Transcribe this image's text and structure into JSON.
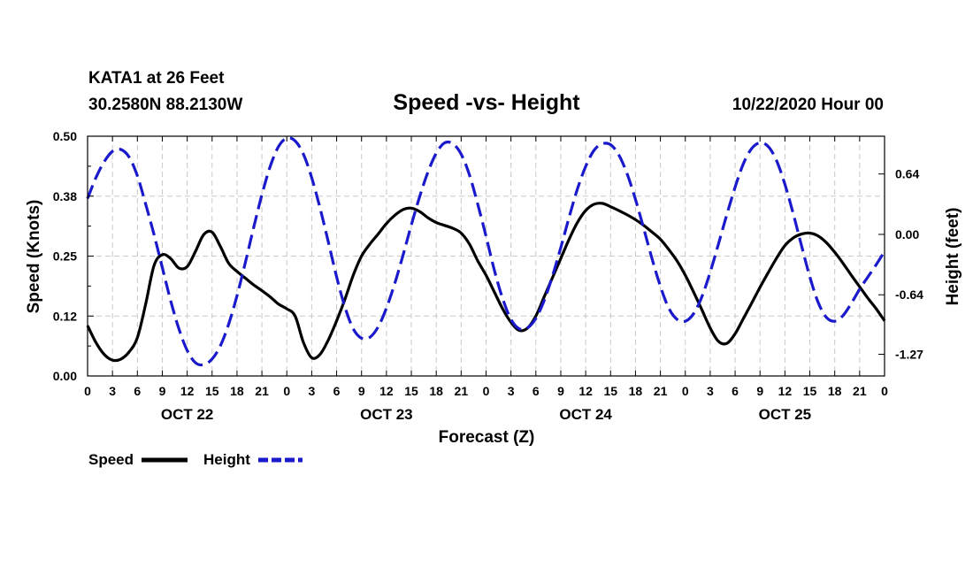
{
  "header": {
    "station": "KATA1 at 26 Feet",
    "coords": "30.2580N 88.2130W",
    "title": "Speed -vs- Height",
    "run": "10/22/2020 Hour 00"
  },
  "legend": {
    "speed_label": "Speed",
    "height_label": "Height"
  },
  "colors": {
    "speed": "#000000",
    "height": "#1a1acc",
    "grid": "#c8c8c8"
  },
  "chart_data": {
    "type": "line",
    "title": "Speed -vs- Height",
    "xlabel": "Forecast (Z)",
    "ylabel_left": "Speed (Knots)",
    "ylabel_right": "Height (feet)",
    "x_range_hours": [
      0,
      96
    ],
    "y_left_range": [
      0,
      0.5
    ],
    "y_right_range": [
      -1.5,
      1.04
    ],
    "y_left_ticks": [
      "0.00",
      "0.12",
      "0.25",
      "0.38",
      "0.50"
    ],
    "y_left_tick_values": [
      0.0,
      0.125,
      0.25,
      0.375,
      0.5
    ],
    "y_right_ticks": [
      "0.64",
      "0.00",
      "-0.64",
      "-1.27"
    ],
    "y_right_tick_values": [
      0.64,
      0.0,
      -0.64,
      -1.27
    ],
    "x_ticks": [
      {
        "hour": 0,
        "label": "0"
      },
      {
        "hour": 3,
        "label": "3"
      },
      {
        "hour": 6,
        "label": "6"
      },
      {
        "hour": 9,
        "label": "9"
      },
      {
        "hour": 12,
        "label": "12"
      },
      {
        "hour": 15,
        "label": "15"
      },
      {
        "hour": 18,
        "label": "18"
      },
      {
        "hour": 21,
        "label": "21"
      },
      {
        "hour": 24,
        "label": "0"
      },
      {
        "hour": 27,
        "label": "3"
      },
      {
        "hour": 30,
        "label": "6"
      },
      {
        "hour": 33,
        "label": "9"
      },
      {
        "hour": 36,
        "label": "12"
      },
      {
        "hour": 39,
        "label": "15"
      },
      {
        "hour": 42,
        "label": "18"
      },
      {
        "hour": 45,
        "label": "21"
      },
      {
        "hour": 48,
        "label": "0"
      },
      {
        "hour": 51,
        "label": "3"
      },
      {
        "hour": 54,
        "label": "6"
      },
      {
        "hour": 57,
        "label": "9"
      },
      {
        "hour": 60,
        "label": "12"
      },
      {
        "hour": 63,
        "label": "15"
      },
      {
        "hour": 66,
        "label": "18"
      },
      {
        "hour": 69,
        "label": "21"
      },
      {
        "hour": 72,
        "label": "0"
      },
      {
        "hour": 75,
        "label": "3"
      },
      {
        "hour": 78,
        "label": "6"
      },
      {
        "hour": 81,
        "label": "9"
      },
      {
        "hour": 84,
        "label": "12"
      },
      {
        "hour": 87,
        "label": "15"
      },
      {
        "hour": 90,
        "label": "18"
      },
      {
        "hour": 93,
        "label": "21"
      },
      {
        "hour": 96,
        "label": "0"
      }
    ],
    "date_labels": [
      {
        "hour": 12,
        "label": "OCT 22"
      },
      {
        "hour": 36,
        "label": "OCT 23"
      },
      {
        "hour": 60,
        "label": "OCT 24"
      },
      {
        "hour": 84,
        "label": "OCT 25"
      }
    ],
    "series": [
      {
        "name": "Speed",
        "axis": "left",
        "style": "solid",
        "points": [
          [
            0,
            0.105
          ],
          [
            1,
            0.07
          ],
          [
            2,
            0.045
          ],
          [
            3,
            0.033
          ],
          [
            4,
            0.035
          ],
          [
            5,
            0.05
          ],
          [
            6,
            0.08
          ],
          [
            7,
            0.15
          ],
          [
            8,
            0.23
          ],
          [
            9,
            0.253
          ],
          [
            10,
            0.245
          ],
          [
            11,
            0.225
          ],
          [
            12,
            0.228
          ],
          [
            13,
            0.26
          ],
          [
            14,
            0.295
          ],
          [
            15,
            0.3
          ],
          [
            16,
            0.27
          ],
          [
            17,
            0.235
          ],
          [
            18,
            0.218
          ],
          [
            19,
            0.204
          ],
          [
            20,
            0.19
          ],
          [
            21,
            0.178
          ],
          [
            22,
            0.165
          ],
          [
            23,
            0.15
          ],
          [
            24,
            0.14
          ],
          [
            25,
            0.125
          ],
          [
            26,
            0.07
          ],
          [
            27,
            0.038
          ],
          [
            28,
            0.045
          ],
          [
            29,
            0.075
          ],
          [
            30,
            0.115
          ],
          [
            31,
            0.16
          ],
          [
            32,
            0.21
          ],
          [
            33,
            0.25
          ],
          [
            34,
            0.275
          ],
          [
            35,
            0.296
          ],
          [
            36,
            0.318
          ],
          [
            37,
            0.335
          ],
          [
            38,
            0.347
          ],
          [
            39,
            0.35
          ],
          [
            40,
            0.343
          ],
          [
            41,
            0.33
          ],
          [
            42,
            0.32
          ],
          [
            43,
            0.314
          ],
          [
            44,
            0.308
          ],
          [
            45,
            0.298
          ],
          [
            46,
            0.275
          ],
          [
            47,
            0.24
          ],
          [
            48,
            0.21
          ],
          [
            49,
            0.175
          ],
          [
            50,
            0.14
          ],
          [
            51,
            0.112
          ],
          [
            52,
            0.095
          ],
          [
            53,
            0.1
          ],
          [
            54,
            0.125
          ],
          [
            55,
            0.165
          ],
          [
            56,
            0.205
          ],
          [
            57,
            0.245
          ],
          [
            58,
            0.285
          ],
          [
            59,
            0.32
          ],
          [
            60,
            0.345
          ],
          [
            61,
            0.358
          ],
          [
            62,
            0.36
          ],
          [
            63,
            0.353
          ],
          [
            64,
            0.345
          ],
          [
            65,
            0.336
          ],
          [
            66,
            0.326
          ],
          [
            67,
            0.314
          ],
          [
            68,
            0.3
          ],
          [
            69,
            0.285
          ],
          [
            70,
            0.264
          ],
          [
            71,
            0.24
          ],
          [
            72,
            0.21
          ],
          [
            73,
            0.175
          ],
          [
            74,
            0.138
          ],
          [
            75,
            0.1
          ],
          [
            76,
            0.072
          ],
          [
            77,
            0.068
          ],
          [
            78,
            0.088
          ],
          [
            79,
            0.12
          ],
          [
            80,
            0.152
          ],
          [
            81,
            0.185
          ],
          [
            82,
            0.216
          ],
          [
            83,
            0.246
          ],
          [
            84,
            0.272
          ],
          [
            85,
            0.288
          ],
          [
            86,
            0.296
          ],
          [
            87,
            0.298
          ],
          [
            88,
            0.292
          ],
          [
            89,
            0.278
          ],
          [
            90,
            0.258
          ],
          [
            91,
            0.235
          ],
          [
            92,
            0.21
          ],
          [
            93,
            0.186
          ],
          [
            94,
            0.162
          ],
          [
            95,
            0.14
          ],
          [
            96,
            0.115
          ]
        ]
      },
      {
        "name": "Height",
        "axis": "right",
        "style": "dashed",
        "points": [
          [
            0,
            0.38
          ],
          [
            1,
            0.6
          ],
          [
            2,
            0.77
          ],
          [
            3,
            0.88
          ],
          [
            4,
            0.9
          ],
          [
            5,
            0.82
          ],
          [
            6,
            0.62
          ],
          [
            7,
            0.32
          ],
          [
            8,
            0.0
          ],
          [
            9,
            -0.35
          ],
          [
            10,
            -0.7
          ],
          [
            11,
            -1.0
          ],
          [
            12,
            -1.23
          ],
          [
            13,
            -1.36
          ],
          [
            14,
            -1.38
          ],
          [
            15,
            -1.32
          ],
          [
            16,
            -1.18
          ],
          [
            17,
            -0.95
          ],
          [
            18,
            -0.65
          ],
          [
            19,
            -0.3
          ],
          [
            20,
            0.07
          ],
          [
            21,
            0.42
          ],
          [
            22,
            0.72
          ],
          [
            23,
            0.93
          ],
          [
            24,
            1.02
          ],
          [
            25,
            0.99
          ],
          [
            26,
            0.85
          ],
          [
            27,
            0.6
          ],
          [
            28,
            0.28
          ],
          [
            29,
            -0.08
          ],
          [
            30,
            -0.45
          ],
          [
            31,
            -0.77
          ],
          [
            32,
            -1.0
          ],
          [
            33,
            -1.1
          ],
          [
            34,
            -1.09
          ],
          [
            35,
            -0.98
          ],
          [
            36,
            -0.78
          ],
          [
            37,
            -0.52
          ],
          [
            38,
            -0.22
          ],
          [
            39,
            0.1
          ],
          [
            40,
            0.4
          ],
          [
            41,
            0.66
          ],
          [
            42,
            0.86
          ],
          [
            43,
            0.97
          ],
          [
            44,
            0.96
          ],
          [
            45,
            0.85
          ],
          [
            46,
            0.63
          ],
          [
            47,
            0.32
          ],
          [
            48,
            -0.02
          ],
          [
            49,
            -0.38
          ],
          [
            50,
            -0.68
          ],
          [
            51,
            -0.9
          ],
          [
            52,
            -1.0
          ],
          [
            53,
            -0.99
          ],
          [
            54,
            -0.89
          ],
          [
            55,
            -0.7
          ],
          [
            56,
            -0.44
          ],
          [
            57,
            -0.14
          ],
          [
            58,
            0.18
          ],
          [
            59,
            0.48
          ],
          [
            60,
            0.72
          ],
          [
            61,
            0.89
          ],
          [
            62,
            0.96
          ],
          [
            63,
            0.95
          ],
          [
            64,
            0.84
          ],
          [
            65,
            0.64
          ],
          [
            66,
            0.37
          ],
          [
            67,
            0.06
          ],
          [
            68,
            -0.26
          ],
          [
            69,
            -0.55
          ],
          [
            70,
            -0.78
          ],
          [
            71,
            -0.9
          ],
          [
            72,
            -0.92
          ],
          [
            73,
            -0.84
          ],
          [
            74,
            -0.66
          ],
          [
            75,
            -0.4
          ],
          [
            76,
            -0.1
          ],
          [
            77,
            0.21
          ],
          [
            78,
            0.5
          ],
          [
            79,
            0.75
          ],
          [
            80,
            0.91
          ],
          [
            81,
            0.97
          ],
          [
            82,
            0.93
          ],
          [
            83,
            0.78
          ],
          [
            84,
            0.53
          ],
          [
            85,
            0.22
          ],
          [
            86,
            -0.12
          ],
          [
            87,
            -0.45
          ],
          [
            88,
            -0.72
          ],
          [
            89,
            -0.88
          ],
          [
            90,
            -0.92
          ],
          [
            91,
            -0.86
          ],
          [
            92,
            -0.73
          ],
          [
            93,
            -0.58
          ],
          [
            94,
            -0.45
          ],
          [
            95,
            -0.32
          ],
          [
            96,
            -0.18
          ]
        ]
      }
    ]
  }
}
